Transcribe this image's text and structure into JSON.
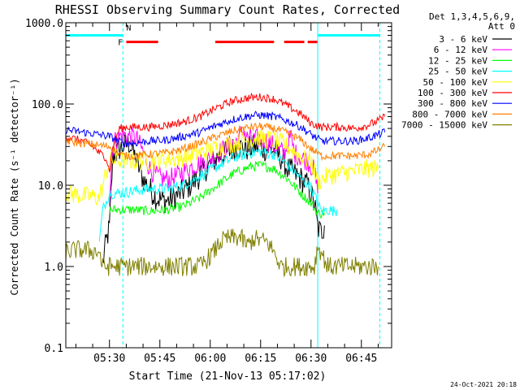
{
  "chart_data": {
    "type": "line",
    "title": "RHESSI Observing Summary Count Rates, Corrected",
    "xlabel": "Start Time (21-Nov-13 05:17:02)",
    "ylabel": "Corrected Count Rate (s⁻¹ detector⁻¹)",
    "x_unit": "minutes after 05:17:02",
    "xlim": [
      0,
      97
    ],
    "ylim": [
      0.1,
      1000
    ],
    "y_scale": "log",
    "grid": false,
    "legend_position": "top-right",
    "legend_header": [
      "Det 1,3,4,5,6,9,",
      "Att 0"
    ],
    "x_ticks": [
      {
        "label": "05:30",
        "x": 13
      },
      {
        "label": "05:45",
        "x": 28
      },
      {
        "label": "06:00",
        "x": 43
      },
      {
        "label": "06:15",
        "x": 58
      },
      {
        "label": "06:30",
        "x": 73
      },
      {
        "label": "06:45",
        "x": 88
      }
    ],
    "y_ticks": [
      {
        "label": "0.1",
        "value": 0.1
      },
      {
        "label": "1.0",
        "value": 1
      },
      {
        "label": "10.0",
        "value": 10
      },
      {
        "label": "100.0",
        "value": 100
      },
      {
        "label": "1000.0",
        "value": 1000
      }
    ],
    "vlines": [
      {
        "x": 0,
        "color": "#00ffff",
        "style": "solid"
      },
      {
        "x": 17,
        "color": "#00ffff",
        "style": "dashed"
      },
      {
        "x": 75,
        "color": "#00ffff",
        "style": "solid"
      },
      {
        "x": 93.5,
        "color": "#00ffff",
        "style": "dashed"
      }
    ],
    "flag_bars": [
      {
        "label": "",
        "color": "#00ffff",
        "y": 700,
        "segments": [
          [
            0,
            17
          ],
          [
            75,
            93.5
          ]
        ]
      },
      {
        "label": "N",
        "color": "#00ffff",
        "y": 880,
        "label_x": 18,
        "segments": []
      },
      {
        "label": "F",
        "color": "#ff0000",
        "y": 580,
        "label_x": 15.5,
        "segments": [
          [
            18,
            27.5
          ],
          [
            44.5,
            62
          ],
          [
            65,
            71
          ],
          [
            72,
            75
          ]
        ]
      }
    ],
    "series": [
      {
        "name": "3 - 6 keV",
        "color": "#000000",
        "noise": 0.16,
        "points": [
          [
            11,
            1.1
          ],
          [
            12,
            2
          ],
          [
            13,
            3
          ],
          [
            14,
            22
          ],
          [
            16,
            28
          ],
          [
            17,
            30
          ],
          [
            19,
            33
          ],
          [
            21,
            20
          ],
          [
            23,
            12
          ],
          [
            25,
            9
          ],
          [
            27,
            7
          ],
          [
            29,
            6.5
          ],
          [
            31,
            6.5
          ],
          [
            33,
            7.5
          ],
          [
            35,
            8.5
          ],
          [
            37,
            10
          ],
          [
            39,
            12
          ],
          [
            41,
            15
          ],
          [
            43,
            18
          ],
          [
            45,
            22
          ],
          [
            48,
            25
          ],
          [
            51,
            30
          ],
          [
            54,
            28
          ],
          [
            57,
            30
          ],
          [
            59,
            28
          ],
          [
            62,
            27
          ],
          [
            64,
            22
          ],
          [
            66,
            16
          ],
          [
            68,
            14
          ],
          [
            70,
            12
          ],
          [
            72,
            10
          ],
          [
            74,
            6
          ],
          [
            75,
            3
          ],
          [
            76,
            2.6
          ],
          [
            77,
            3.2
          ]
        ]
      },
      {
        "name": "6 - 12 keV",
        "color": "#ff00ff",
        "noise": 0.13,
        "points": [
          [
            13,
            6.5
          ],
          [
            14,
            33
          ],
          [
            16,
            40
          ],
          [
            17,
            42
          ],
          [
            19,
            40
          ],
          [
            21,
            38
          ],
          [
            23,
            26
          ],
          [
            25,
            16
          ],
          [
            27,
            13
          ],
          [
            29,
            12
          ],
          [
            31,
            12
          ],
          [
            33,
            13
          ],
          [
            36,
            16
          ],
          [
            39,
            18
          ],
          [
            42,
            20
          ],
          [
            45,
            24
          ],
          [
            48,
            30
          ],
          [
            51,
            35
          ],
          [
            53,
            48
          ],
          [
            54,
            38
          ],
          [
            56,
            36
          ],
          [
            58,
            38
          ],
          [
            60,
            35
          ],
          [
            63,
            28
          ],
          [
            65,
            25
          ],
          [
            67,
            40
          ],
          [
            68,
            25
          ],
          [
            70,
            22
          ],
          [
            72,
            20
          ],
          [
            74,
            15
          ],
          [
            75,
            8
          ]
        ]
      },
      {
        "name": "12 - 25 keV",
        "color": "#00ff00",
        "noise": 0.06,
        "points": [
          [
            13,
            5
          ],
          [
            17,
            5
          ],
          [
            20,
            5
          ],
          [
            25,
            4.8
          ],
          [
            30,
            5
          ],
          [
            35,
            5.5
          ],
          [
            40,
            7
          ],
          [
            45,
            10
          ],
          [
            50,
            14
          ],
          [
            55,
            17
          ],
          [
            58,
            17.5
          ],
          [
            62,
            16
          ],
          [
            66,
            12
          ],
          [
            70,
            8
          ],
          [
            73,
            6
          ],
          [
            75,
            4.5
          ],
          [
            76,
            4.5
          ],
          [
            77,
            4.6
          ]
        ]
      },
      {
        "name": "25 - 50 keV",
        "color": "#00ffff",
        "noise": 0.07,
        "points": [
          [
            10,
            2
          ],
          [
            11,
            5
          ],
          [
            13,
            8
          ],
          [
            17,
            8
          ],
          [
            20,
            8.5
          ],
          [
            25,
            9
          ],
          [
            30,
            9
          ],
          [
            35,
            10
          ],
          [
            40,
            13
          ],
          [
            45,
            17
          ],
          [
            50,
            22
          ],
          [
            55,
            25
          ],
          [
            58,
            26
          ],
          [
            62,
            24
          ],
          [
            66,
            18
          ],
          [
            70,
            12
          ],
          [
            73,
            9.5
          ],
          [
            75,
            6
          ],
          [
            76,
            4.8
          ],
          [
            78,
            5
          ],
          [
            80,
            4.8
          ],
          [
            81,
            5
          ]
        ]
      },
      {
        "name": "50 - 100 keV",
        "color": "#ffff00",
        "noise": 0.12,
        "points": [
          [
            0,
            8
          ],
          [
            5,
            7.5
          ],
          [
            10,
            7
          ],
          [
            13,
            20
          ],
          [
            17,
            20
          ],
          [
            20,
            20
          ],
          [
            25,
            20
          ],
          [
            30,
            21
          ],
          [
            35,
            22
          ],
          [
            40,
            25
          ],
          [
            45,
            29
          ],
          [
            50,
            33
          ],
          [
            55,
            37
          ],
          [
            58,
            38
          ],
          [
            62,
            36
          ],
          [
            66,
            30
          ],
          [
            70,
            22
          ],
          [
            73,
            20
          ],
          [
            75,
            11
          ],
          [
            78,
            13
          ],
          [
            82,
            14
          ],
          [
            86,
            15
          ],
          [
            90,
            16
          ],
          [
            93,
            16
          ]
        ]
      },
      {
        "name": "100 - 300 keV",
        "color": "#ff0000",
        "noise": 0.05,
        "points": [
          [
            0,
            40
          ],
          [
            5,
            35
          ],
          [
            8,
            30
          ],
          [
            10,
            25
          ],
          [
            12,
            22
          ],
          [
            13,
            15
          ],
          [
            14,
            30
          ],
          [
            16,
            50
          ],
          [
            18,
            52
          ],
          [
            25,
            52
          ],
          [
            30,
            55
          ],
          [
            35,
            60
          ],
          [
            40,
            70
          ],
          [
            45,
            90
          ],
          [
            50,
            110
          ],
          [
            55,
            120
          ],
          [
            58,
            122
          ],
          [
            62,
            115
          ],
          [
            66,
            95
          ],
          [
            70,
            75
          ],
          [
            73,
            58
          ],
          [
            76,
            52
          ],
          [
            82,
            52
          ],
          [
            86,
            50
          ],
          [
            90,
            55
          ],
          [
            93,
            62
          ],
          [
            95,
            70
          ]
        ]
      },
      {
        "name": "300 - 800 keV",
        "color": "#0000ff",
        "noise": 0.05,
        "points": [
          [
            0,
            48
          ],
          [
            5,
            45
          ],
          [
            10,
            42
          ],
          [
            13,
            40
          ],
          [
            17,
            33
          ],
          [
            20,
            33
          ],
          [
            25,
            35
          ],
          [
            30,
            36
          ],
          [
            35,
            40
          ],
          [
            40,
            45
          ],
          [
            45,
            55
          ],
          [
            50,
            65
          ],
          [
            55,
            72
          ],
          [
            58,
            73
          ],
          [
            62,
            70
          ],
          [
            66,
            62
          ],
          [
            70,
            52
          ],
          [
            73,
            42
          ],
          [
            76,
            35
          ],
          [
            82,
            35
          ],
          [
            86,
            35
          ],
          [
            90,
            38
          ],
          [
            93,
            42
          ],
          [
            95,
            45
          ]
        ]
      },
      {
        "name": "800 - 7000 keV",
        "color": "#ff8000",
        "noise": 0.05,
        "points": [
          [
            0,
            35
          ],
          [
            5,
            33
          ],
          [
            10,
            31
          ],
          [
            13,
            30
          ],
          [
            17,
            23
          ],
          [
            20,
            23
          ],
          [
            25,
            24
          ],
          [
            30,
            25
          ],
          [
            35,
            28
          ],
          [
            40,
            33
          ],
          [
            45,
            40
          ],
          [
            50,
            47
          ],
          [
            55,
            52
          ],
          [
            58,
            53
          ],
          [
            62,
            50
          ],
          [
            66,
            44
          ],
          [
            70,
            36
          ],
          [
            73,
            28
          ],
          [
            76,
            23
          ],
          [
            82,
            23
          ],
          [
            86,
            23
          ],
          [
            90,
            24
          ],
          [
            93,
            27
          ],
          [
            95,
            30
          ]
        ]
      },
      {
        "name": "7000 - 15000 keV",
        "color": "#808000",
        "noise": 0.12,
        "points": [
          [
            0,
            1.5
          ],
          [
            3,
            1.6
          ],
          [
            6,
            1.6
          ],
          [
            10,
            1.5
          ],
          [
            11,
            1
          ],
          [
            17,
            1
          ],
          [
            25,
            1
          ],
          [
            33,
            1
          ],
          [
            40,
            1
          ],
          [
            44,
            1.5
          ],
          [
            46,
            2
          ],
          [
            48,
            2.2
          ],
          [
            52,
            2.3
          ],
          [
            54,
            1.8
          ],
          [
            56,
            2.2
          ],
          [
            60,
            2
          ],
          [
            62,
            1.5
          ],
          [
            64,
            1
          ],
          [
            66,
            1
          ],
          [
            70,
            1
          ],
          [
            74,
            1
          ],
          [
            75,
            1.8
          ],
          [
            76,
            1.5
          ],
          [
            78,
            1
          ],
          [
            85,
            1
          ],
          [
            90,
            1
          ],
          [
            93,
            1
          ]
        ]
      }
    ]
  },
  "footer": {
    "timestamp": "24-Oct-2021 20:18"
  }
}
